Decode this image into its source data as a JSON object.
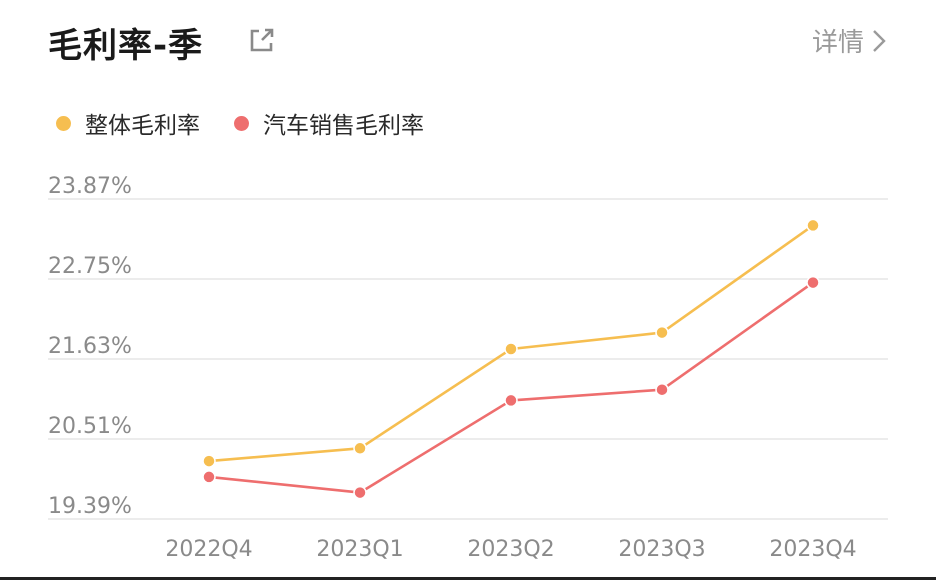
{
  "header": {
    "title": "毛利率-季",
    "detail_label": "详情"
  },
  "icons": {
    "share": "external-link-icon",
    "chevron": "chevron-right-icon"
  },
  "colors": {
    "series_overall": "#F6BE50",
    "series_auto": "#EE6E6E",
    "grid": "#e6e6e6",
    "tick_text": "#8a8a8a"
  },
  "chart_data": {
    "type": "line",
    "title": "毛利率-季",
    "xlabel": "",
    "ylabel": "",
    "categories": [
      "2022Q4",
      "2023Q1",
      "2023Q2",
      "2023Q3",
      "2023Q4"
    ],
    "y_ticks": [
      "23.87%",
      "22.75%",
      "21.63%",
      "20.51%",
      "19.39%"
    ],
    "ylim": [
      19.39,
      23.87
    ],
    "grid": true,
    "legend_position": "top-left",
    "series": [
      {
        "name": "整体毛利率",
        "color": "#F6BE50",
        "values": [
          20.2,
          20.38,
          21.77,
          22.0,
          23.5
        ]
      },
      {
        "name": "汽车销售毛利率",
        "color": "#EE6E6E",
        "values": [
          19.98,
          19.76,
          21.05,
          21.2,
          22.7
        ]
      }
    ]
  }
}
